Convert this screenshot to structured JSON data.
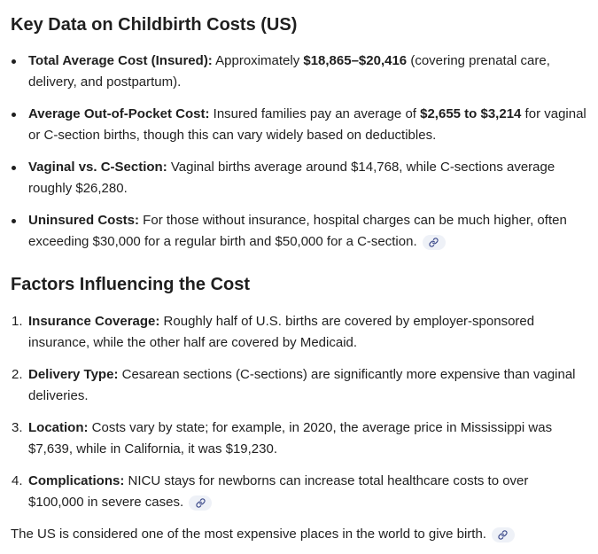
{
  "section1": {
    "heading": "Key Data on Childbirth Costs (US)",
    "items": [
      {
        "label": "Total Average Cost (Insured):",
        "pre": " Approximately ",
        "bold": "$18,865–$20,416",
        "post": " (covering prenatal care, delivery, and postpartum)."
      },
      {
        "label": "Average Out-of-Pocket Cost:",
        "pre": " Insured families pay an average of ",
        "bold": "$2,655 to $3,214",
        "post": " for vaginal or C-section births, though this can vary widely based on deductibles."
      },
      {
        "label": "Vaginal vs. C-Section:",
        "text": " Vaginal births average around $14,768, while C-sections average roughly $26,280."
      },
      {
        "label": "Uninsured Costs:",
        "text": " For those without insurance, hospital charges can be much higher, often exceeding $30,000 for a regular birth and $50,000 for a C-section."
      }
    ]
  },
  "section2": {
    "heading": "Factors Influencing the Cost",
    "items": [
      {
        "num": "1.",
        "label": "Insurance Coverage:",
        "text": " Roughly half of U.S. births are covered by employer-sponsored insurance, while the other half are covered by Medicaid."
      },
      {
        "num": "2.",
        "label": "Delivery Type:",
        "text": " Cesarean sections (C-sections) are significantly more expensive than vaginal deliveries."
      },
      {
        "num": "3.",
        "label": "Location:",
        "text": " Costs vary by state; for example, in 2020, the average price in Mississippi was $7,639, while in California, it was $19,230."
      },
      {
        "num": "4.",
        "label": "Complications:",
        "text": " NICU stays for newborns can increase total healthcare costs to over $100,000 in severe cases."
      }
    ]
  },
  "closing": {
    "text": "The US is considered one of the most expensive places in the world to give birth."
  },
  "icons": {
    "citation": "link-icon"
  },
  "colors": {
    "text": "#1f1f1f",
    "chip_bg": "#eef1f7",
    "chip_icon": "#3c4a8a"
  }
}
